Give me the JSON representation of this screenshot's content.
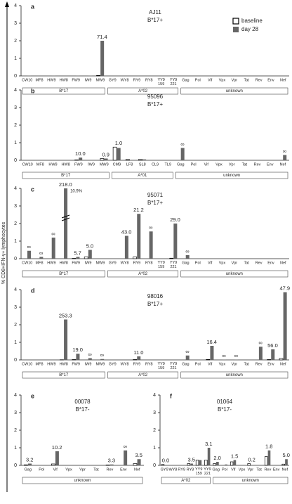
{
  "y_label": "% CD8+IFN-γ+ lymphocytes",
  "chart_data": [
    {
      "type": "bar",
      "letter": "a",
      "sample": "AJ11",
      "status": "B*17+",
      "legend": true,
      "categories": [
        "CW10",
        "MF8",
        "HW9",
        "HW8",
        "FW9",
        "IW9",
        "MW9",
        "GY9",
        "WY8",
        "RY9",
        "RY8",
        "YY9 159",
        "YY9 221",
        "Gag",
        "Pol",
        "Vif",
        "Vpx",
        "Vpr",
        "Tat",
        "Rev",
        "Env",
        "Nef"
      ],
      "group": [
        "B*17",
        "B*17",
        "B*17",
        "B*17",
        "B*17",
        "B*17",
        "B*17",
        "A*02",
        "A*02",
        "A*02",
        "A*02",
        "A*02",
        "A*02",
        "unknown",
        "unknown",
        "unknown",
        "unknown",
        "unknown",
        "unknown",
        "unknown",
        "unknown",
        "unknown"
      ],
      "series": [
        {
          "name": "baseline",
          "color": "#ffffff",
          "values": [
            0,
            0,
            0,
            0,
            0,
            0,
            0.03,
            0,
            0,
            0,
            0,
            0,
            0,
            0,
            0,
            0,
            0,
            0,
            0,
            0,
            0,
            0
          ]
        },
        {
          "name": "day 28",
          "color": "#666666",
          "values": [
            0.02,
            0,
            0.02,
            0,
            0.02,
            0.02,
            2.0,
            0,
            0,
            0,
            0,
            0,
            0,
            0,
            0,
            0,
            0,
            0,
            0,
            0,
            0,
            0
          ]
        }
      ],
      "fold_labels": [
        null,
        null,
        null,
        null,
        null,
        null,
        "71.4",
        null,
        null,
        null,
        null,
        null,
        null,
        null,
        null,
        null,
        null,
        null,
        null,
        null,
        null,
        null
      ],
      "ylim": [
        0,
        4
      ],
      "yticks": [
        0,
        1,
        2,
        3,
        4
      ]
    },
    {
      "type": "bar",
      "letter": "b",
      "sample": "95096",
      "status": "B*17+",
      "legend": false,
      "categories": [
        "CW10",
        "MF8",
        "HW9",
        "HW8",
        "FW9",
        "IW9",
        "MW9",
        "CM9",
        "LF8",
        "SL8",
        "CL9",
        "TL9",
        "Gag",
        "Pol",
        "Vif",
        "Vpx",
        "Vpr",
        "Tat",
        "Rev",
        "Env",
        "Nef"
      ],
      "group": [
        "B*17",
        "B*17",
        "B*17",
        "B*17",
        "B*17",
        "B*17",
        "B*17",
        "A*01",
        "A*01",
        "A*01",
        "A*01",
        "A*01",
        "unknown",
        "unknown",
        "unknown",
        "unknown",
        "unknown",
        "unknown",
        "unknown",
        "unknown",
        "unknown"
      ],
      "series": [
        {
          "color": "#ffffff",
          "values": [
            0,
            0,
            0,
            0,
            0.02,
            0,
            0.1,
            0.75,
            0.05,
            0.05,
            0,
            0,
            0,
            0,
            0,
            0,
            0,
            0,
            0,
            0,
            0
          ]
        },
        {
          "color": "#666666",
          "values": [
            0,
            0,
            0,
            0,
            0.15,
            0,
            0.1,
            0.7,
            0,
            0.05,
            0,
            0,
            0.7,
            0,
            0,
            0,
            0,
            0,
            0,
            0,
            0.3
          ]
        }
      ],
      "fold_labels": [
        null,
        null,
        null,
        null,
        "10.0",
        null,
        "0.9",
        "1.0",
        null,
        null,
        null,
        null,
        "∞",
        null,
        null,
        null,
        null,
        null,
        null,
        null,
        "∞"
      ],
      "ylim": [
        0,
        4
      ],
      "yticks": [
        0,
        1,
        2,
        3,
        4
      ]
    },
    {
      "type": "bar",
      "letter": "c",
      "sample": "95071",
      "status": "B*17+",
      "legend": false,
      "categories": [
        "CW10",
        "MF8",
        "HW9",
        "HW8",
        "FW9",
        "IW9",
        "MW9",
        "GY9",
        "WY8",
        "RY9",
        "RY8",
        "YY9 159",
        "YY9 221",
        "Gag",
        "Pol",
        "Vif",
        "Vpx",
        "Vpr",
        "Tat",
        "Rev",
        "Env",
        "Nef"
      ],
      "group": [
        "B*17",
        "B*17",
        "B*17",
        "B*17",
        "B*17",
        "B*17",
        "B*17",
        "A*02",
        "A*02",
        "A*02",
        "A*02",
        "A*02",
        "A*02",
        "unknown",
        "unknown",
        "unknown",
        "unknown",
        "unknown",
        "unknown",
        "unknown",
        "unknown",
        "unknown"
      ],
      "series": [
        {
          "color": "#ffffff",
          "values": [
            0,
            0,
            0,
            0,
            0.02,
            0.1,
            0,
            0,
            0,
            0.1,
            0,
            0,
            0.03,
            0,
            0,
            0,
            0,
            0,
            0,
            0,
            0,
            0
          ]
        },
        {
          "color": "#666666",
          "values": [
            0.45,
            0.1,
            1.2,
            10.9,
            0.1,
            0.5,
            0,
            0,
            1.3,
            2.55,
            1.55,
            0,
            2.0,
            0.2,
            0,
            0,
            0,
            0,
            0,
            0,
            0,
            0
          ],
          "value_labels": [
            null,
            null,
            null,
            "10.9%",
            null,
            null,
            null,
            null,
            null,
            null,
            null,
            null,
            null,
            null,
            null,
            null,
            null,
            null,
            null,
            null,
            null,
            null
          ]
        }
      ],
      "fold_labels": [
        "∞",
        "∞",
        "∞",
        "218.0",
        "5.7",
        "5.0",
        null,
        null,
        "43.0",
        "21.2",
        "∞",
        null,
        "29.0",
        "∞",
        null,
        null,
        null,
        null,
        null,
        null,
        null,
        null
      ],
      "ylim": [
        0,
        4
      ],
      "yticks": [
        0,
        1,
        2,
        3,
        4
      ]
    },
    {
      "type": "bar",
      "letter": "d",
      "sample": "98016",
      "status": "B*17+",
      "legend": false,
      "categories": [
        "CW10",
        "MF8",
        "HW9",
        "HW8",
        "FW9",
        "IW9",
        "MW9",
        "GY9",
        "WY8",
        "RY9",
        "RY8",
        "YY9 159",
        "YY9 221",
        "Gag",
        "Pol",
        "Vif",
        "Vpx",
        "Vpr",
        "Tat",
        "Rev",
        "Env",
        "Nef"
      ],
      "group": [
        "B*17",
        "B*17",
        "B*17",
        "B*17",
        "B*17",
        "B*17",
        "B*17",
        "A*02",
        "A*02",
        "A*02",
        "A*02",
        "A*02",
        "A*02",
        "unknown",
        "unknown",
        "unknown",
        "unknown",
        "unknown",
        "unknown",
        "unknown",
        "unknown",
        "unknown"
      ],
      "series": [
        {
          "color": "#ffffff",
          "values": [
            0,
            0,
            0,
            0.01,
            0.02,
            0,
            0,
            0,
            0,
            0.02,
            0,
            0,
            0,
            0,
            0,
            0.03,
            0,
            0,
            0,
            0,
            0.02,
            0.08
          ]
        },
        {
          "color": "#666666",
          "values": [
            0,
            0,
            0,
            2.3,
            0.35,
            0.1,
            0.05,
            0,
            0,
            0.2,
            0,
            0,
            0,
            0.25,
            0,
            0.8,
            0.02,
            0.02,
            0,
            0.75,
            0.6,
            3.85
          ]
        }
      ],
      "fold_labels": [
        null,
        null,
        null,
        "253.3",
        "19.0",
        "∞",
        "∞",
        null,
        null,
        "11.0",
        null,
        null,
        null,
        "∞",
        null,
        "16.4",
        "∞",
        "∞",
        null,
        "∞",
        "56.0",
        "47.9"
      ],
      "ylim": [
        0,
        4
      ],
      "yticks": [
        0,
        1,
        2,
        3,
        4
      ]
    },
    {
      "type": "bar",
      "letter": "e",
      "sample": "00078",
      "status": "B*17-",
      "legend": false,
      "categories": [
        "Gag",
        "Pol",
        "Vif",
        "Vpx",
        "Vpr",
        "Tat",
        "Rev",
        "Env",
        "Nef"
      ],
      "group": [
        "unknown",
        "unknown",
        "unknown",
        "unknown",
        "unknown",
        "unknown",
        "unknown",
        "unknown",
        "unknown"
      ],
      "series": [
        {
          "color": "#ffffff",
          "values": [
            0.03,
            0,
            0.08,
            0,
            0,
            0,
            0.02,
            0,
            0.1
          ]
        },
        {
          "color": "#666666",
          "values": [
            0.1,
            0,
            0.8,
            0,
            0,
            0,
            0.05,
            0.85,
            0.35
          ]
        }
      ],
      "fold_labels": [
        "3.2",
        null,
        "10.2",
        null,
        null,
        null,
        "3.3",
        "∞",
        "3.5"
      ],
      "ylim": [
        0,
        4
      ],
      "yticks": [
        0,
        1,
        2,
        3,
        4
      ]
    },
    {
      "type": "bar",
      "letter": "f",
      "sample": "01064",
      "status": "B*17-",
      "legend": false,
      "categories": [
        "GY9",
        "WY8",
        "RY9",
        "RY8",
        "YY9 159",
        "YY9 221",
        "Gag",
        "Pol",
        "Vif",
        "Vpx",
        "Vpr",
        "Tat",
        "Rev",
        "Env",
        "Nef"
      ],
      "group": [
        "A*02",
        "A*02",
        "A*02",
        "A*02",
        "A*02",
        "A*02",
        "unknown",
        "unknown",
        "unknown",
        "unknown",
        "unknown",
        "unknown",
        "unknown",
        "unknown",
        "unknown"
      ],
      "series": [
        {
          "color": "#ffffff",
          "values": [
            0.05,
            0,
            0,
            0.1,
            0.3,
            0.3,
            0.1,
            0,
            0.2,
            0,
            0.1,
            0,
            0.5,
            0,
            0.07
          ]
        },
        {
          "color": "#666666",
          "values": [
            0,
            0,
            0,
            0.1,
            0.3,
            1.0,
            0.2,
            0.05,
            0.3,
            0,
            0.02,
            0,
            0.85,
            0,
            0.35
          ]
        }
      ],
      "fold_labels": [
        "0.0",
        null,
        null,
        "3.5",
        null,
        "3.1",
        "2.0",
        null,
        "1.5",
        null,
        "0.2",
        null,
        "1.8",
        null,
        "5.0"
      ],
      "ylim": [
        0,
        4
      ],
      "yticks": [
        0,
        1,
        2,
        3,
        4
      ]
    }
  ]
}
